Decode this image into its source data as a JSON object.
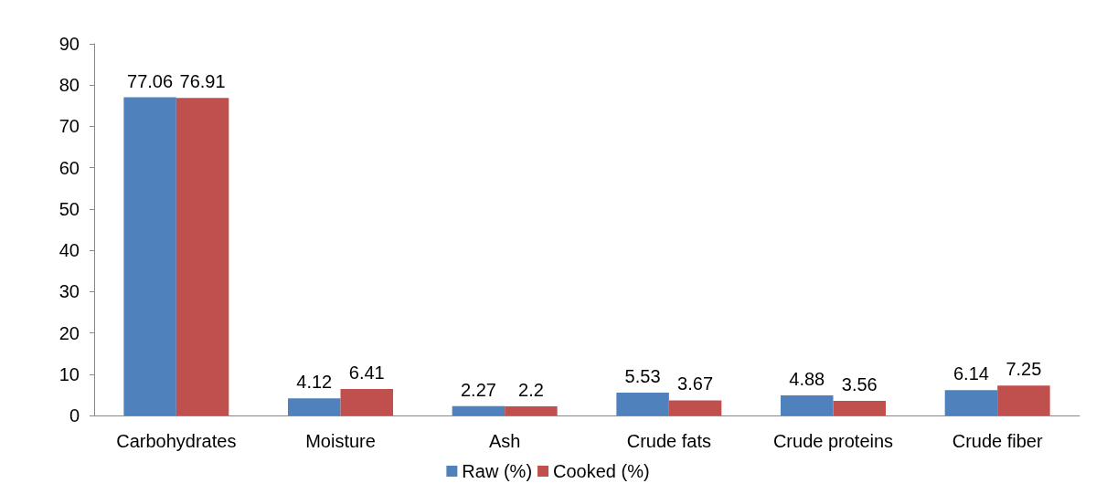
{
  "chart_data": {
    "type": "bar",
    "categories": [
      "Carbohydrates",
      "Moisture",
      "Ash",
      "Crude fats",
      "Crude proteins",
      "Crude fiber"
    ],
    "series": [
      {
        "name": "Raw (%)",
        "color": "#4f81bd",
        "values": [
          77.06,
          4.12,
          2.27,
          5.53,
          4.88,
          6.14
        ]
      },
      {
        "name": "Cooked (%)",
        "color": "#c0504d",
        "values": [
          76.91,
          6.41,
          2.2,
          3.67,
          3.56,
          7.25
        ]
      }
    ],
    "ylim": [
      0,
      90
    ],
    "yticks": [
      0,
      10,
      20,
      30,
      40,
      50,
      60,
      70,
      80,
      90
    ],
    "data_labels": true,
    "legend": "bottom",
    "grid": false
  }
}
